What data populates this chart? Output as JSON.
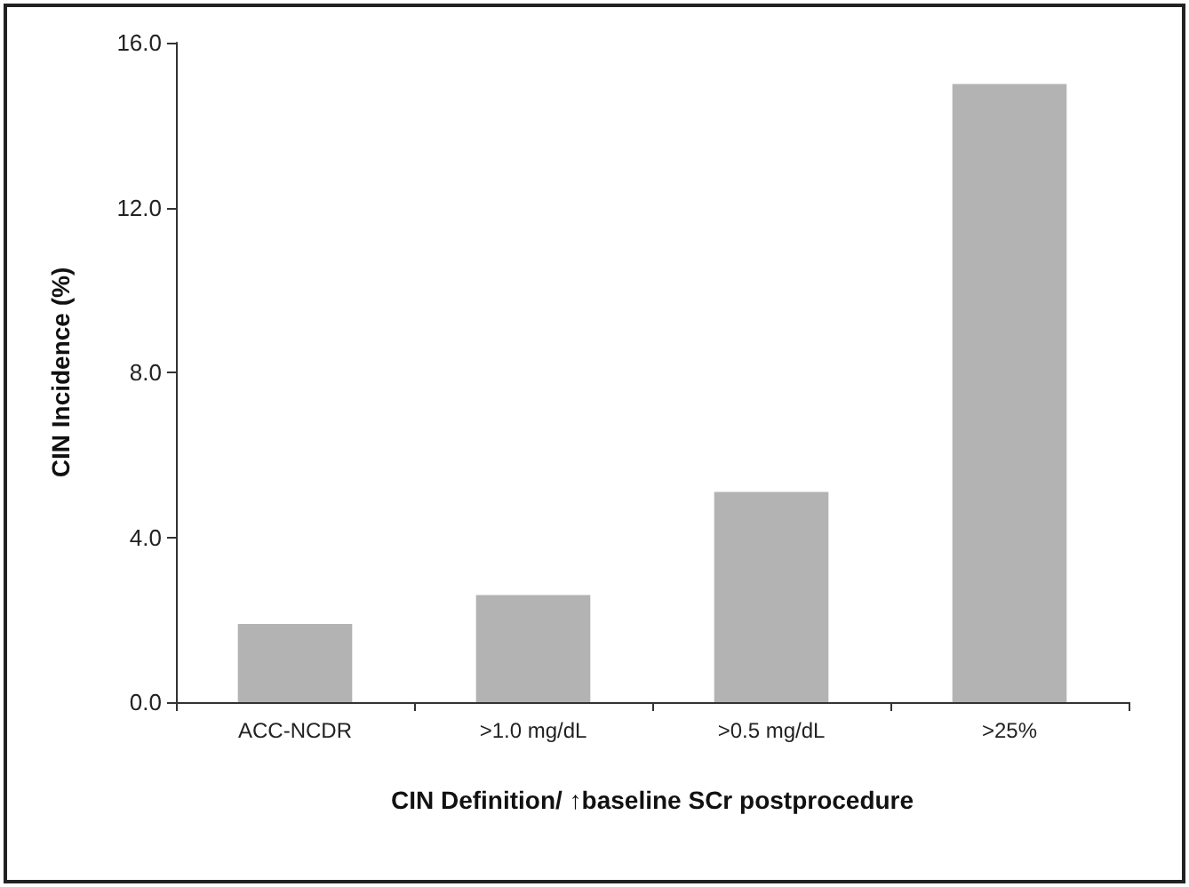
{
  "chart_data": {
    "type": "bar",
    "xlabel": "CIN Definition/ ↑baseline SCr postprocedure",
    "ylabel": "CIN Incidence (%)",
    "categories": [
      "ACC-NCDR",
      ">1.0 mg/dL",
      ">0.5 mg/dL",
      ">25%"
    ],
    "values": [
      1.9,
      2.6,
      5.1,
      15.0
    ],
    "color": "#b3b3b3",
    "ylim": [
      0,
      16
    ],
    "yticks": [
      {
        "value": 0,
        "label": "0.0"
      },
      {
        "value": 4,
        "label": "4.0"
      },
      {
        "value": 8,
        "label": "8.0"
      },
      {
        "value": 12,
        "label": "12.0"
      },
      {
        "value": 16,
        "label": "16.0"
      }
    ],
    "grid": false
  }
}
